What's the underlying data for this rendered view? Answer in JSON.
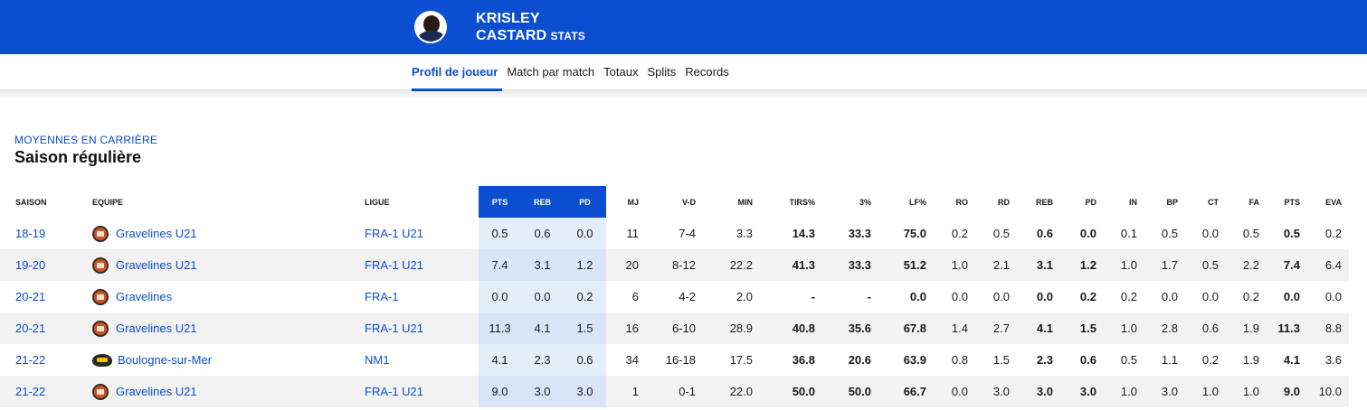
{
  "header": {
    "first_name": "KRISLEY",
    "last_name": "CASTARD",
    "stats_label": "STATS",
    "brand_color": "#0b4fd0"
  },
  "tabs": [
    {
      "label": "Profil de joueur",
      "active": true
    },
    {
      "label": "Match par match",
      "active": false
    },
    {
      "label": "Totaux",
      "active": false
    },
    {
      "label": "Splits",
      "active": false
    },
    {
      "label": "Records",
      "active": false
    }
  ],
  "section": {
    "kicker": "MOYENNES EN CARRIÈRE",
    "title": "Saison régulière"
  },
  "table": {
    "columns": [
      "SAISON",
      "EQUIPE",
      "LIGUE",
      "PTS",
      "REB",
      "PD",
      "MJ",
      "V-D",
      "MIN",
      "TIRS%",
      "3%",
      "LF%",
      "RO",
      "RD",
      "REB",
      "PD",
      "IN",
      "BP",
      "CT",
      "FA",
      "PTS",
      "EVA"
    ],
    "rows": [
      {
        "saison": "18-19",
        "equipe": "Gravelines U21",
        "logo": "gravelines-logo-icon",
        "ligue": "FRA-1 U21",
        "pts": "0.5",
        "reb": "0.6",
        "pd": "0.0",
        "mj": "11",
        "vd": "7-4",
        "min": "3.3",
        "tirs": "14.3",
        "p3": "33.3",
        "lf": "75.0",
        "ro": "0.2",
        "rd": "0.5",
        "reb2": "0.6",
        "pd2": "0.0",
        "in": "0.1",
        "bp": "0.5",
        "ct": "0.0",
        "fa": "0.5",
        "pts2": "0.5",
        "eva": "0.2"
      },
      {
        "saison": "19-20",
        "equipe": "Gravelines U21",
        "logo": "gravelines-logo-icon",
        "ligue": "FRA-1 U21",
        "pts": "7.4",
        "reb": "3.1",
        "pd": "1.2",
        "mj": "20",
        "vd": "8-12",
        "min": "22.2",
        "tirs": "41.3",
        "p3": "33.3",
        "lf": "51.2",
        "ro": "1.0",
        "rd": "2.1",
        "reb2": "3.1",
        "pd2": "1.2",
        "in": "1.0",
        "bp": "1.7",
        "ct": "0.5",
        "fa": "2.2",
        "pts2": "7.4",
        "eva": "6.4"
      },
      {
        "saison": "20-21",
        "equipe": "Gravelines",
        "logo": "gravelines-logo-icon",
        "ligue": "FRA-1",
        "pts": "0.0",
        "reb": "0.0",
        "pd": "0.2",
        "mj": "6",
        "vd": "4-2",
        "min": "2.0",
        "tirs": "-",
        "p3": "-",
        "lf": "0.0",
        "ro": "0.0",
        "rd": "0.0",
        "reb2": "0.0",
        "pd2": "0.2",
        "in": "0.2",
        "bp": "0.0",
        "ct": "0.0",
        "fa": "0.2",
        "pts2": "0.0",
        "eva": "0.0"
      },
      {
        "saison": "20-21",
        "equipe": "Gravelines U21",
        "logo": "gravelines-logo-icon",
        "ligue": "FRA-1 U21",
        "pts": "11.3",
        "reb": "4.1",
        "pd": "1.5",
        "mj": "16",
        "vd": "6-10",
        "min": "28.9",
        "tirs": "40.8",
        "p3": "35.6",
        "lf": "67.8",
        "ro": "1.4",
        "rd": "2.7",
        "reb2": "4.1",
        "pd2": "1.5",
        "in": "1.0",
        "bp": "2.8",
        "ct": "0.6",
        "fa": "1.9",
        "pts2": "11.3",
        "eva": "8.8"
      },
      {
        "saison": "21-22",
        "equipe": "Boulogne-sur-Mer",
        "logo": "boulogne-logo-icon",
        "ligue": "NM1",
        "pts": "4.1",
        "reb": "2.3",
        "pd": "0.6",
        "mj": "34",
        "vd": "16-18",
        "min": "17.5",
        "tirs": "36.8",
        "p3": "20.6",
        "lf": "63.9",
        "ro": "0.8",
        "rd": "1.5",
        "reb2": "2.3",
        "pd2": "0.6",
        "in": "0.5",
        "bp": "1.1",
        "ct": "0.2",
        "fa": "1.9",
        "pts2": "4.1",
        "eva": "3.6"
      },
      {
        "saison": "21-22",
        "equipe": "Gravelines U21",
        "logo": "gravelines-logo-icon",
        "ligue": "FRA-1 U21",
        "pts": "9.0",
        "reb": "3.0",
        "pd": "3.0",
        "mj": "1",
        "vd": "0-1",
        "min": "22.0",
        "tirs": "50.0",
        "p3": "50.0",
        "lf": "66.7",
        "ro": "0.0",
        "rd": "3.0",
        "reb2": "3.0",
        "pd2": "3.0",
        "in": "1.0",
        "bp": "3.0",
        "ct": "1.0",
        "fa": "1.0",
        "pts2": "9.0",
        "eva": "10.0"
      }
    ]
  }
}
